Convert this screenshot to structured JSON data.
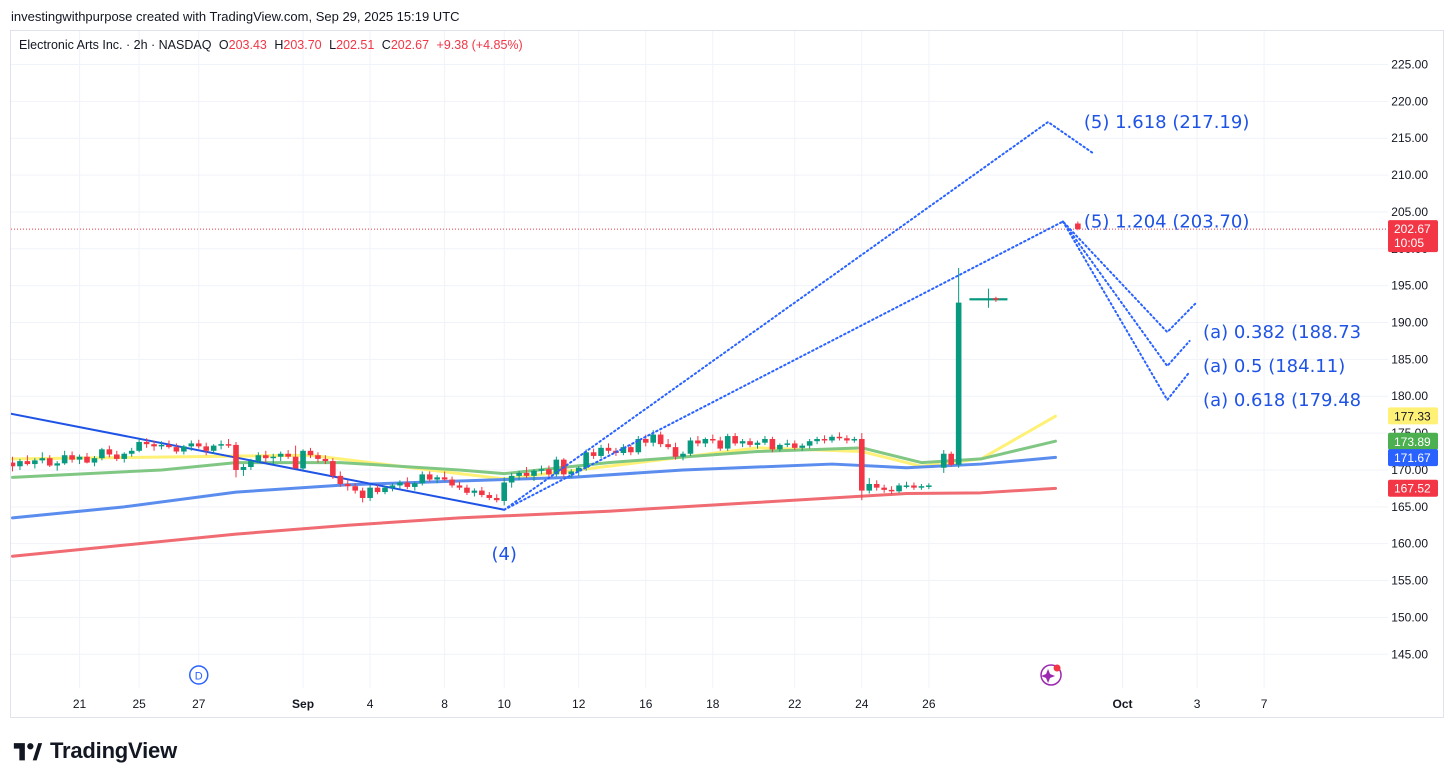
{
  "attribution": "investingwithpurpose created with TradingView.com, Sep 29, 2025 15:19 UTC",
  "legend": {
    "symbol": "Electronic Arts Inc. · 2h · NASDAQ",
    "o_label": "O",
    "o_value": "203.43",
    "h_label": "H",
    "h_value": "203.70",
    "l_label": "L",
    "l_value": "202.51",
    "c_label": "C",
    "c_value": "202.67",
    "change": "+9.38 (+4.85%)"
  },
  "brand": {
    "name": "TradingView"
  },
  "colors": {
    "up": "#089981",
    "down": "#f23645",
    "wave_blue": "#2962ff",
    "grid": "#f0f3fa",
    "ma_yellow": "#fff176",
    "ma_green": "#81c784",
    "ma_blue": "#5b8def",
    "ma_red": "#f06b72"
  },
  "icons": [
    "dividend-badge-icon",
    "earnings-sparkle-icon"
  ],
  "chart_data": {
    "type": "candlestick",
    "ylim": [
      140,
      227
    ],
    "y_ticks": [
      "225.00",
      "220.00",
      "215.00",
      "210.00",
      "205.00",
      "200.00",
      "195.00",
      "190.00",
      "185.00",
      "180.00",
      "175.00",
      "170.00",
      "165.00",
      "160.00",
      "155.00",
      "150.00",
      "145.00"
    ],
    "x_ticks": [
      {
        "i": 9,
        "label": "21"
      },
      {
        "i": 17,
        "label": "25"
      },
      {
        "i": 25,
        "label": "27"
      },
      {
        "i": 39,
        "label": "Sep"
      },
      {
        "i": 48,
        "label": "4"
      },
      {
        "i": 58,
        "label": "8"
      },
      {
        "i": 66,
        "label": "10"
      },
      {
        "i": 76,
        "label": "12"
      },
      {
        "i": 85,
        "label": "16"
      },
      {
        "i": 94,
        "label": "18"
      },
      {
        "i": 105,
        "label": "22"
      },
      {
        "i": 114,
        "label": "24"
      },
      {
        "i": 123,
        "label": "26"
      },
      {
        "i": 149,
        "label": "Oct"
      },
      {
        "i": 159,
        "label": "3"
      },
      {
        "i": 168,
        "label": "7"
      }
    ],
    "candles": [
      [
        171.0,
        171.8,
        169.8,
        170.5
      ],
      [
        170.5,
        171.5,
        170.0,
        171.2
      ],
      [
        171.2,
        172.0,
        170.6,
        170.8
      ],
      [
        170.8,
        171.6,
        170.2,
        171.3
      ],
      [
        171.3,
        172.4,
        170.9,
        171.6
      ],
      [
        171.6,
        172.0,
        170.4,
        170.6
      ],
      [
        170.6,
        171.2,
        169.9,
        170.9
      ],
      [
        170.9,
        172.6,
        170.7,
        172.0
      ],
      [
        172.0,
        172.5,
        171.0,
        171.4
      ],
      [
        171.4,
        172.1,
        170.8,
        171.8
      ],
      [
        171.8,
        172.3,
        170.9,
        171.0
      ],
      [
        171.0,
        171.9,
        170.5,
        171.6
      ],
      [
        171.6,
        173.0,
        171.3,
        172.8
      ],
      [
        172.8,
        173.3,
        171.7,
        172.1
      ],
      [
        172.1,
        172.6,
        171.2,
        171.5
      ],
      [
        171.5,
        172.4,
        171.0,
        172.2
      ],
      [
        172.2,
        173.0,
        171.8,
        172.6
      ],
      [
        172.6,
        174.2,
        172.4,
        173.8
      ],
      [
        173.8,
        174.3,
        173.0,
        173.5
      ],
      [
        173.5,
        174.0,
        172.6,
        173.2
      ],
      [
        173.2,
        173.9,
        172.8,
        173.4
      ],
      [
        173.4,
        174.0,
        172.9,
        173.1
      ],
      [
        173.1,
        173.6,
        172.2,
        172.5
      ],
      [
        172.5,
        173.4,
        172.1,
        173.2
      ],
      [
        173.2,
        174.0,
        172.6,
        173.6
      ],
      [
        173.6,
        174.1,
        172.9,
        173.2
      ],
      [
        173.2,
        173.7,
        172.0,
        172.6
      ],
      [
        172.6,
        173.5,
        172.2,
        173.3
      ],
      [
        173.3,
        174.0,
        172.8,
        173.5
      ],
      [
        173.5,
        174.2,
        173.0,
        173.4
      ],
      [
        173.4,
        173.8,
        169.0,
        170.0
      ],
      [
        170.0,
        170.8,
        169.2,
        170.4
      ],
      [
        170.4,
        171.5,
        170.0,
        171.2
      ],
      [
        171.2,
        172.4,
        170.9,
        172.0
      ],
      [
        172.0,
        172.6,
        171.0,
        171.6
      ],
      [
        171.6,
        172.2,
        170.8,
        171.8
      ],
      [
        171.8,
        172.5,
        171.2,
        172.2
      ],
      [
        172.2,
        172.7,
        171.5,
        171.8
      ],
      [
        171.8,
        173.3,
        171.4,
        170.2
      ],
      [
        170.2,
        172.8,
        170.0,
        172.6
      ],
      [
        172.6,
        173.0,
        171.6,
        172.0
      ],
      [
        172.0,
        172.4,
        171.0,
        171.5
      ],
      [
        171.5,
        172.0,
        170.8,
        171.2
      ],
      [
        171.2,
        171.6,
        168.8,
        169.2
      ],
      [
        169.2,
        169.8,
        167.7,
        168.1
      ],
      [
        168.1,
        168.6,
        167.2,
        167.8
      ],
      [
        167.8,
        168.2,
        166.8,
        167.2
      ],
      [
        167.2,
        167.6,
        165.6,
        166.2
      ],
      [
        166.2,
        168.0,
        165.8,
        167.6
      ],
      [
        167.6,
        168.0,
        166.7,
        167.0
      ],
      [
        167.0,
        167.8,
        166.7,
        167.6
      ],
      [
        167.6,
        168.2,
        167.1,
        167.9
      ],
      [
        167.9,
        168.6,
        167.5,
        168.3
      ],
      [
        168.3,
        169.0,
        167.4,
        167.7
      ],
      [
        167.7,
        168.4,
        167.2,
        168.2
      ],
      [
        168.2,
        169.8,
        167.9,
        169.4
      ],
      [
        169.4,
        169.8,
        168.4,
        168.7
      ],
      [
        168.7,
        169.3,
        168.2,
        169.0
      ],
      [
        169.0,
        169.8,
        168.5,
        168.7
      ],
      [
        168.7,
        169.1,
        167.6,
        167.9
      ],
      [
        167.9,
        168.4,
        167.3,
        167.6
      ],
      [
        167.6,
        168.0,
        166.6,
        166.9
      ],
      [
        166.9,
        167.5,
        166.4,
        167.2
      ],
      [
        167.2,
        167.7,
        166.3,
        166.6
      ],
      [
        166.6,
        167.0,
        165.9,
        166.2
      ],
      [
        166.2,
        166.7,
        165.6,
        165.9
      ],
      [
        165.8,
        169.0,
        165.2,
        168.3
      ],
      [
        168.3,
        169.6,
        167.6,
        169.2
      ],
      [
        169.2,
        169.9,
        168.6,
        169.6
      ],
      [
        169.6,
        170.4,
        168.9,
        169.2
      ],
      [
        169.2,
        170.1,
        168.5,
        169.9
      ],
      [
        169.9,
        170.6,
        169.4,
        170.1
      ],
      [
        170.1,
        170.6,
        169.0,
        169.4
      ],
      [
        169.4,
        171.8,
        169.1,
        171.4
      ],
      [
        171.4,
        171.6,
        169.0,
        169.4
      ],
      [
        169.4,
        170.1,
        168.9,
        169.8
      ],
      [
        169.8,
        170.5,
        169.2,
        170.3
      ],
      [
        170.3,
        172.8,
        169.9,
        172.4
      ],
      [
        172.4,
        172.9,
        171.5,
        171.9
      ],
      [
        171.9,
        173.4,
        171.6,
        173.0
      ],
      [
        173.0,
        173.6,
        172.2,
        172.6
      ],
      [
        172.6,
        173.0,
        171.9,
        172.3
      ],
      [
        172.3,
        173.5,
        172.0,
        173.1
      ],
      [
        173.1,
        173.4,
        172.0,
        172.4
      ],
      [
        172.4,
        174.6,
        172.1,
        174.2
      ],
      [
        174.2,
        174.8,
        173.2,
        173.7
      ],
      [
        173.7,
        175.4,
        173.2,
        174.8
      ],
      [
        174.8,
        175.2,
        173.1,
        173.5
      ],
      [
        173.5,
        174.2,
        172.8,
        173.1
      ],
      [
        173.1,
        173.7,
        171.4,
        171.8
      ],
      [
        171.8,
        172.5,
        171.3,
        172.2
      ],
      [
        172.2,
        174.4,
        171.9,
        174.0
      ],
      [
        174.0,
        174.6,
        173.2,
        173.6
      ],
      [
        173.6,
        174.4,
        173.1,
        174.2
      ],
      [
        174.2,
        174.8,
        173.6,
        174.0
      ],
      [
        174.0,
        174.5,
        172.6,
        172.9
      ],
      [
        172.9,
        174.9,
        172.6,
        174.6
      ],
      [
        174.6,
        175.0,
        173.3,
        173.6
      ],
      [
        173.6,
        174.2,
        173.1,
        173.9
      ],
      [
        173.9,
        174.3,
        173.1,
        173.4
      ],
      [
        173.4,
        174.0,
        172.9,
        173.7
      ],
      [
        173.7,
        174.6,
        173.4,
        174.2
      ],
      [
        174.2,
        174.5,
        172.4,
        172.8
      ],
      [
        172.8,
        173.6,
        172.5,
        173.4
      ],
      [
        173.4,
        174.1,
        173.1,
        173.6
      ],
      [
        173.6,
        174.0,
        172.7,
        173.0
      ],
      [
        173.0,
        173.6,
        172.6,
        173.3
      ],
      [
        173.3,
        174.2,
        172.9,
        173.9
      ],
      [
        173.9,
        174.5,
        173.5,
        174.2
      ],
      [
        174.2,
        174.7,
        173.6,
        174.0
      ],
      [
        174.0,
        174.8,
        173.7,
        174.5
      ],
      [
        174.5,
        175.1,
        174.0,
        174.3
      ],
      [
        174.3,
        174.7,
        173.6,
        174.0
      ],
      [
        174.0,
        174.5,
        173.7,
        174.2
      ],
      [
        174.2,
        175.0,
        165.9,
        167.2
      ],
      [
        167.2,
        168.9,
        166.8,
        168.1
      ],
      [
        168.1,
        168.6,
        167.2,
        167.6
      ],
      [
        167.6,
        168.0,
        166.9,
        167.3
      ],
      [
        167.3,
        167.8,
        166.7,
        167.1
      ],
      [
        167.1,
        168.2,
        166.9,
        167.9
      ],
      [
        167.9,
        168.4,
        167.5,
        167.9
      ],
      [
        167.9,
        168.3,
        167.3,
        167.6
      ],
      [
        167.6,
        168.1,
        167.3,
        167.8
      ],
      [
        167.8,
        168.2,
        167.4,
        167.9
      ],
      null,
      [
        170.3,
        172.7,
        169.6,
        172.2
      ],
      [
        172.2,
        172.5,
        170.5,
        170.7
      ],
      [
        170.7,
        197.4,
        170.3,
        192.7
      ],
      null,
      null,
      null,
      [
        193.0,
        194.6,
        192.0,
        193.3
      ],
      [
        193.3,
        193.5,
        192.8,
        193.1
      ],
      null,
      null,
      null,
      null,
      null,
      null,
      null,
      null,
      null,
      null,
      [
        203.43,
        203.7,
        202.51,
        202.67
      ]
    ],
    "moving_averages": [
      {
        "color": "#fff176",
        "points": [
          [
            0,
            171.5
          ],
          [
            40,
            172.0
          ],
          [
            60,
            169.5
          ],
          [
            66,
            168.8
          ],
          [
            80,
            170.5
          ],
          [
            100,
            173.0
          ],
          [
            114,
            172.5
          ],
          [
            122,
            170.5
          ],
          [
            130,
            171.5
          ],
          [
            140,
            177.3
          ]
        ]
      },
      {
        "color": "#81c784",
        "points": [
          [
            0,
            169.0
          ],
          [
            20,
            170.0
          ],
          [
            30,
            171.0
          ],
          [
            44,
            171.0
          ],
          [
            60,
            170.0
          ],
          [
            66,
            169.5
          ],
          [
            80,
            171.0
          ],
          [
            100,
            172.5
          ],
          [
            114,
            173.0
          ],
          [
            122,
            171.0
          ],
          [
            130,
            171.5
          ],
          [
            140,
            173.9
          ]
        ]
      },
      {
        "color": "#5b8def",
        "points": [
          [
            0,
            163.5
          ],
          [
            15,
            165.0
          ],
          [
            30,
            167.0
          ],
          [
            45,
            168.0
          ],
          [
            60,
            168.5
          ],
          [
            75,
            169.0
          ],
          [
            90,
            170.0
          ],
          [
            110,
            170.8
          ],
          [
            120,
            170.3
          ],
          [
            130,
            170.8
          ],
          [
            140,
            171.7
          ]
        ]
      },
      {
        "color": "#f06b72",
        "points": [
          [
            0,
            158.3
          ],
          [
            15,
            159.8
          ],
          [
            30,
            161.3
          ],
          [
            45,
            162.5
          ],
          [
            60,
            163.5
          ],
          [
            80,
            164.4
          ],
          [
            100,
            165.6
          ],
          [
            120,
            166.8
          ],
          [
            130,
            166.9
          ],
          [
            140,
            167.5
          ]
        ]
      }
    ],
    "trend_line": [
      [
        0,
        177.7
      ],
      [
        66,
        164.6
      ]
    ],
    "wave_paths": [
      [
        [
          66,
          164.6
        ],
        [
          139,
          217.2
        ],
        [
          145,
          213.0
        ]
      ],
      [
        [
          66,
          164.6
        ],
        [
          141,
          203.7
        ],
        [
          155,
          188.7
        ],
        [
          159,
          192.8
        ]
      ],
      [
        [
          141,
          203.7
        ],
        [
          155,
          184.1
        ],
        [
          158,
          187.5
        ]
      ],
      [
        [
          141,
          203.7
        ],
        [
          155,
          179.5
        ],
        [
          158,
          183.3
        ]
      ]
    ],
    "annotations": [
      {
        "text": "(5) 1.618 (217.19)",
        "i": 143,
        "y": 217.19
      },
      {
        "text": "(5) 1.204 (203.70)",
        "i": 143,
        "y": 203.7
      },
      {
        "text": "(a) 0.382 (188.73",
        "i": 159,
        "y": 188.73
      },
      {
        "text": "(a) 0.5 (184.11)",
        "i": 159,
        "y": 184.11
      },
      {
        "text": "(a) 0.618 (179.48",
        "i": 159,
        "y": 179.48
      },
      {
        "text": "(4)",
        "i": 66,
        "y": 158.6
      }
    ],
    "price_labels": [
      {
        "value": "202.67",
        "sub": "10:05",
        "y": 202.67,
        "color": "#f23645",
        "text_color": "#ffffff"
      },
      {
        "value": "177.33",
        "y": 177.33,
        "color": "#fff176",
        "text_color": "#131722"
      },
      {
        "value": "173.89",
        "y": 173.89,
        "color": "#4caf50",
        "text_color": "#ffffff"
      },
      {
        "value": "171.67",
        "y": 171.67,
        "color": "#2962ff",
        "text_color": "#ffffff"
      },
      {
        "value": "167.52",
        "y": 167.52,
        "color": "#f23645",
        "text_color": "#ffffff"
      }
    ],
    "current_price": 202.67,
    "events": [
      {
        "type": "dividend",
        "label": "D",
        "i": 25
      },
      {
        "type": "earnings",
        "i": 139
      }
    ]
  }
}
